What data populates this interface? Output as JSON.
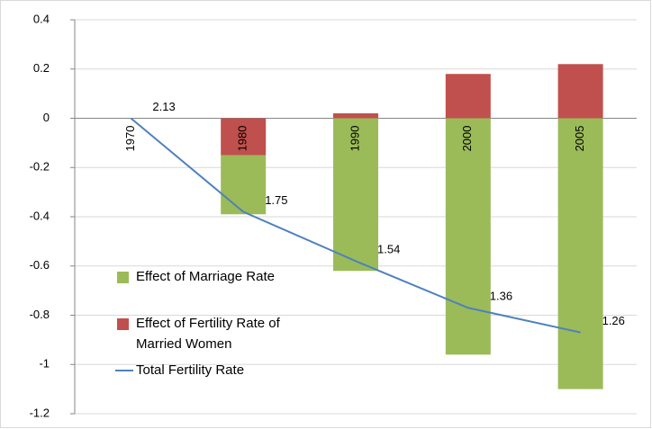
{
  "chart_data": {
    "type": "bar",
    "categories": [
      "1970",
      "1980",
      "1990",
      "2000",
      "2005"
    ],
    "series": [
      {
        "name": "Effect of Marriage Rate",
        "color": "#9bbb59",
        "values": [
          0,
          -0.24,
          -0.62,
          -0.96,
          -1.1
        ]
      },
      {
        "name": "Effect of Fertility Rate of Married Women",
        "color": "#c0504d",
        "values": [
          0,
          -0.15,
          0.02,
          0.18,
          0.22
        ]
      },
      {
        "name": "Total Fertility Rate",
        "type": "line",
        "color": "#4f81bd",
        "values": [
          0,
          -0.38,
          -0.58,
          -0.77,
          -0.87
        ],
        "annotations": [
          "2.13",
          "1.75",
          "1.54",
          "1.36",
          "1.26"
        ]
      }
    ],
    "ylim": [
      -1.2,
      0.4
    ],
    "yticks": [
      {
        "value": -1.2,
        "label": "-1.2"
      },
      {
        "value": -1,
        "label": "-1"
      },
      {
        "value": -0.8,
        "label": "-0.8"
      },
      {
        "value": -0.6,
        "label": "-0.6"
      },
      {
        "value": -0.4,
        "label": "-0.4"
      },
      {
        "value": -0.2,
        "label": "-0.2"
      },
      0,
      {
        "value": 0.2,
        "label": "0.2"
      },
      {
        "value": 0.4,
        "label": "0.4"
      }
    ],
    "grid": true
  }
}
